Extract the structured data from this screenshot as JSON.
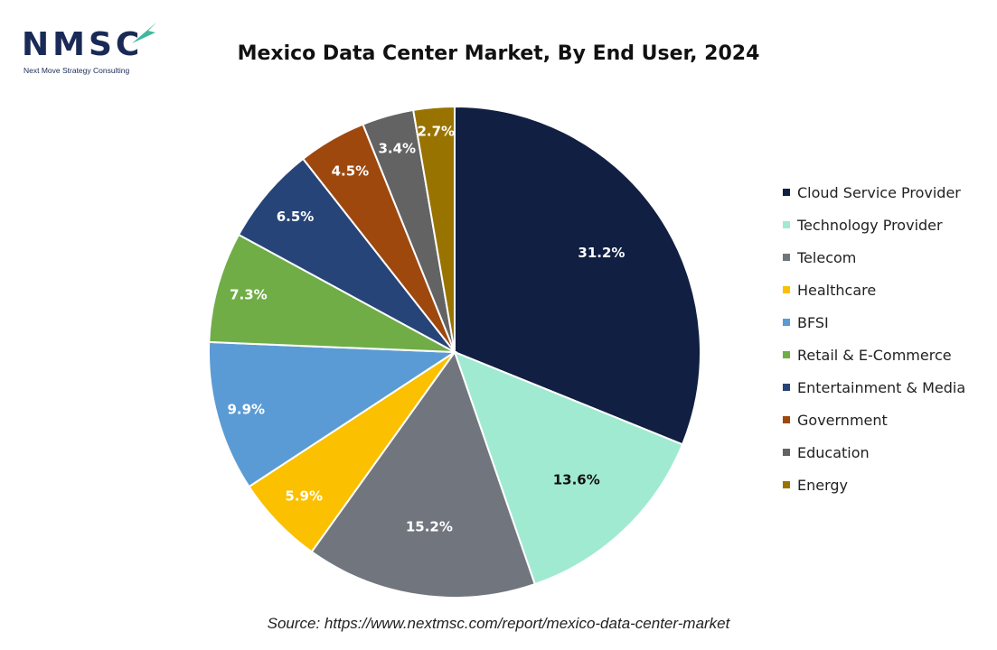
{
  "logo": {
    "name": "NMSC",
    "tagline": "Next Move Strategy Consulting",
    "color": "#1a2a56",
    "accent": "#3fb8a0"
  },
  "chart_data": {
    "type": "pie",
    "title": "Mexico Data Center Market, By End User, 2024",
    "categories": [
      "Cloud Service Provider",
      "Technology Provider",
      "Telecom",
      "Healthcare",
      "BFSI",
      "Retail & E-Commerce",
      "Entertainment & Media",
      "Government",
      "Education",
      "Energy"
    ],
    "values": [
      31.2,
      13.6,
      15.2,
      5.9,
      9.9,
      7.3,
      6.5,
      4.5,
      3.4,
      2.7
    ],
    "data_labels": [
      "31.2%",
      "13.6%",
      "15.2%",
      "5.9%",
      "9.9%",
      "7.3%",
      "6.5%",
      "4.5%",
      "3.4%",
      "2.7%"
    ],
    "colors": [
      "#111f42",
      "#a1ead2",
      "#71767e",
      "#fbc000",
      "#5b9bd5",
      "#70ad47",
      "#264478",
      "#9e480e",
      "#636363",
      "#997300"
    ],
    "label_colors": [
      "#ffffff",
      "#111111",
      "#ffffff",
      "#ffffff",
      "#ffffff",
      "#ffffff",
      "#ffffff",
      "#ffffff",
      "#ffffff",
      "#ffffff"
    ],
    "start_angle_deg": 0,
    "direction": "clockwise",
    "legend_position": "right"
  },
  "source": "Source: https://www.nextmsc.com/report/mexico-data-center-market"
}
